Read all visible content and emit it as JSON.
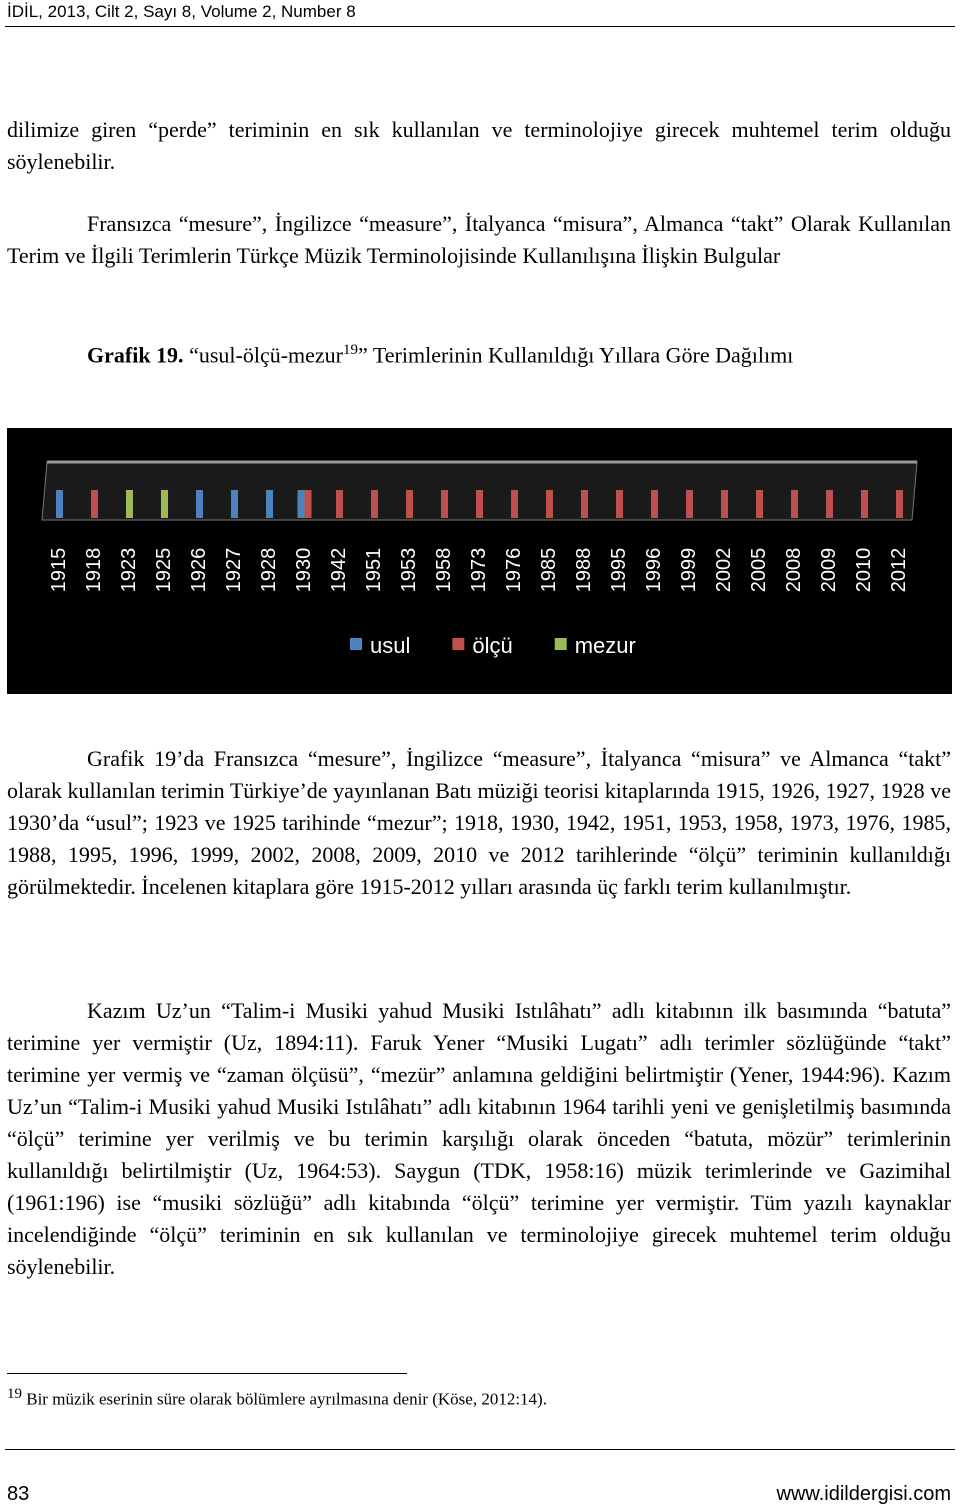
{
  "header": {
    "journal": "İDİL, 2013, Cilt 2, Sayı 8, Volume 2, Number 8"
  },
  "paragraphs": [
    "dilimize giren “perde” teriminin en sık kullanılan ve terminolojiye girecek muhtemel terim olduğu söylenebilir.",
    "Fransızca “mesure”, İngilizce “measure”, İtalyanca “misura”, Almanca “takt” Olarak Kullanılan Terim ve İlgili Terimlerin Türkçe Müzik Terminolojisinde Kullanılışına İlişkin Bulgular"
  ],
  "caption": {
    "label": "Grafik 19.",
    "text_before": "“usul-ölçü-mezur",
    "footnote_ref": "19",
    "text_after": "” Terimlerinin Kullanıldığı Yıllara Göre Dağılımı"
  },
  "chart_data": {
    "type": "bar",
    "categories": [
      "1915",
      "1918",
      "1923",
      "1925",
      "1926",
      "1927",
      "1928",
      "1930",
      "1942",
      "1951",
      "1953",
      "1958",
      "1973",
      "1976",
      "1985",
      "1988",
      "1995",
      "1996",
      "1999",
      "2002",
      "2005",
      "2008",
      "2009",
      "2010",
      "2012"
    ],
    "series": [
      {
        "name": "usul",
        "color": "#4f81bd",
        "values": [
          1,
          null,
          null,
          null,
          1,
          1,
          1,
          1,
          null,
          null,
          null,
          null,
          null,
          null,
          null,
          null,
          null,
          null,
          null,
          null,
          null,
          null,
          null,
          null,
          null
        ]
      },
      {
        "name": "ölçü",
        "color": "#c0504d",
        "values": [
          null,
          1,
          null,
          null,
          null,
          null,
          null,
          1,
          1,
          1,
          1,
          1,
          1,
          1,
          1,
          1,
          1,
          1,
          1,
          1,
          1,
          1,
          1,
          1,
          1
        ]
      },
      {
        "name": "mezur",
        "color": "#9bbb59",
        "values": [
          null,
          null,
          1,
          1,
          null,
          null,
          null,
          null,
          null,
          null,
          null,
          null,
          null,
          null,
          null,
          null,
          null,
          null,
          null,
          null,
          null,
          null,
          null,
          null,
          null
        ]
      }
    ],
    "legend": "bottom"
  },
  "body": [
    "Grafik 19’da Fransızca “mesure”, İngilizce “measure”, İtalyanca “misura” ve Almanca “takt” olarak kullanılan terimin Türkiye’de yayınlanan Batı müziği teorisi kitaplarında 1915, 1926, 1927, 1928 ve 1930’da “usul”; 1923 ve 1925 tarihinde “mezur”; 1918, 1930, 1942, 1951, 1953, 1958, 1973, 1976, 1985, 1988, 1995, 1996, 1999, 2002, 2008, 2009, 2010 ve 2012 tarihlerinde “ölçü” teriminin kullanıldığı görülmektedir. İncelenen kitaplara göre 1915-2012 yılları arasında üç farklı terim kullanılmıştır.",
    "Kazım Uz’un “Talim-i Musiki yahud Musiki Istılâhatı” adlı kitabının ilk basımında “batuta” terimine yer vermiştir (Uz, 1894:11). Faruk Yener “Musiki Lugatı” adlı terimler sözlüğünde “takt” terimine yer vermiş ve “zaman ölçüsü”, “mezür” anlamına geldiğini belirtmiştir (Yener, 1944:96). Kazım Uz’un “Talim-i Musiki yahud Musiki Istılâhatı” adlı kitabının 1964 tarihli yeni ve genişletilmiş basımında “ölçü” terimine yer verilmiş ve bu terimin karşılığı olarak önceden “batuta, mözür” terimlerinin kullanıldığı belirtilmiştir (Uz, 1964:53). Saygun (TDK, 1958:16) müzik terimlerinde ve Gazimihal (1961:196) ise “musiki sözlüğü” adlı kitabında “ölçü” terimine yer vermiştir. Tüm yazılı kaynaklar incelendiğinde “ölçü” teriminin en sık kullanılan ve terminolojiye girecek muhtemel terim olduğu söylenebilir."
  ],
  "footnote": {
    "number": "19",
    "text": "Bir müzik eserinin süre olarak bölümlere ayrılmasına denir (Köse, 2012:14)."
  },
  "footer": {
    "page": "83",
    "site": "www.idildergisi.com"
  }
}
